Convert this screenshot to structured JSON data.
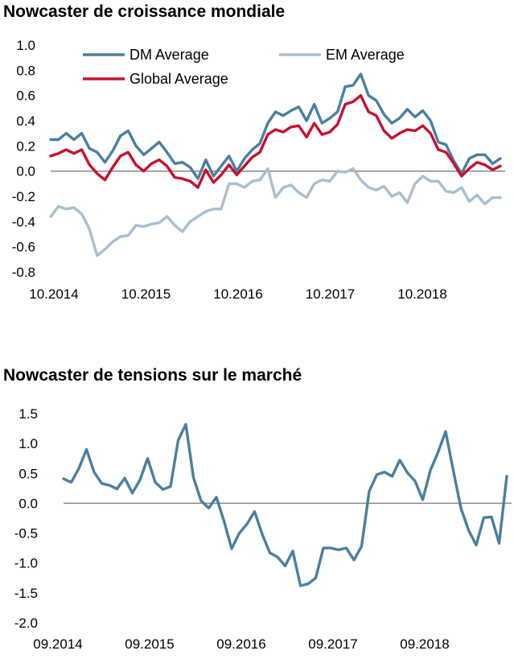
{
  "chart_data": [
    {
      "type": "line",
      "title": "Nowcaster de croissance mondiale",
      "xlabel": "",
      "ylabel": "",
      "x_tick_labels": [
        "10.2014",
        "10.2015",
        "10.2016",
        "10.2017",
        "10.2018"
      ],
      "y_tick_labels": [
        "1.0",
        "0.8",
        "0.6",
        "0.4",
        "0.2",
        "0.0",
        "-0.2",
        "-0.4",
        "-0.6",
        "-0.8"
      ],
      "ylim": [
        -0.8,
        1.0
      ],
      "grid": false,
      "legend_position": "top-left",
      "series": [
        {
          "name": "DM Average",
          "color": "#4a7fa0",
          "values": [
            0.25,
            0.25,
            0.3,
            0.25,
            0.3,
            0.18,
            0.15,
            0.07,
            0.16,
            0.28,
            0.32,
            0.2,
            0.13,
            0.18,
            0.23,
            0.15,
            0.06,
            0.07,
            0.03,
            -0.06,
            0.09,
            -0.04,
            0.04,
            0.12,
            0.0,
            0.1,
            0.17,
            0.22,
            0.38,
            0.47,
            0.44,
            0.48,
            0.51,
            0.4,
            0.53,
            0.38,
            0.42,
            0.47,
            0.67,
            0.68,
            0.77,
            0.6,
            0.56,
            0.45,
            0.38,
            0.42,
            0.49,
            0.43,
            0.48,
            0.4,
            0.23,
            0.21,
            0.08,
            -0.02,
            0.1,
            0.13,
            0.13,
            0.06,
            0.1
          ]
        },
        {
          "name": "EM Average",
          "color": "#a8c0cf",
          "values": [
            -0.36,
            -0.28,
            -0.3,
            -0.29,
            -0.34,
            -0.46,
            -0.67,
            -0.62,
            -0.56,
            -0.52,
            -0.51,
            -0.43,
            -0.44,
            -0.42,
            -0.41,
            -0.36,
            -0.43,
            -0.48,
            -0.4,
            -0.36,
            -0.32,
            -0.3,
            -0.3,
            -0.1,
            -0.1,
            -0.13,
            -0.08,
            -0.07,
            0.02,
            -0.21,
            -0.13,
            -0.11,
            -0.17,
            -0.21,
            -0.1,
            -0.07,
            -0.08,
            0.0,
            -0.01,
            0.02,
            -0.07,
            -0.13,
            -0.15,
            -0.12,
            -0.2,
            -0.17,
            -0.25,
            -0.1,
            -0.04,
            -0.08,
            -0.08,
            -0.16,
            -0.17,
            -0.13,
            -0.24,
            -0.19,
            -0.26,
            -0.21,
            -0.21
          ]
        },
        {
          "name": "Global Average",
          "color": "#c8102e",
          "values": [
            0.12,
            0.14,
            0.17,
            0.14,
            0.17,
            0.05,
            -0.02,
            -0.07,
            0.03,
            0.12,
            0.15,
            0.05,
            0.0,
            0.06,
            0.09,
            0.04,
            -0.05,
            -0.06,
            -0.08,
            -0.13,
            0.01,
            -0.09,
            -0.03,
            0.05,
            -0.03,
            0.04,
            0.11,
            0.15,
            0.29,
            0.33,
            0.31,
            0.35,
            0.36,
            0.27,
            0.38,
            0.29,
            0.31,
            0.37,
            0.53,
            0.55,
            0.6,
            0.47,
            0.44,
            0.32,
            0.26,
            0.3,
            0.33,
            0.32,
            0.36,
            0.3,
            0.17,
            0.15,
            0.06,
            -0.04,
            0.02,
            0.07,
            0.05,
            0.01,
            0.04
          ]
        }
      ]
    },
    {
      "type": "line",
      "title": "Nowcaster de tensions sur le marché",
      "xlabel": "",
      "ylabel": "",
      "x_tick_labels": [
        "09.2014",
        "09.2015",
        "09.2016",
        "09.2017",
        "09.2018"
      ],
      "y_tick_labels": [
        "1.5",
        "1.0",
        "0.5",
        "0.0",
        "-0.5",
        "-1.0",
        "-1.5",
        "-2.0"
      ],
      "ylim": [
        -2.0,
        1.5
      ],
      "grid": false,
      "legend_position": "none",
      "series": [
        {
          "color": "#4a7fa0",
          "values": [
            0.41,
            0.35,
            0.58,
            0.9,
            0.52,
            0.33,
            0.3,
            0.24,
            0.42,
            0.17,
            0.39,
            0.75,
            0.35,
            0.23,
            0.28,
            1.05,
            1.32,
            0.43,
            0.04,
            -0.08,
            0.1,
            -0.3,
            -0.76,
            -0.5,
            -0.35,
            -0.14,
            -0.52,
            -0.83,
            -0.9,
            -1.05,
            -0.8,
            -1.38,
            -1.35,
            -1.25,
            -0.75,
            -0.75,
            -0.78,
            -0.75,
            -0.95,
            -0.72,
            0.2,
            0.48,
            0.52,
            0.45,
            0.72,
            0.51,
            0.37,
            0.06,
            0.55,
            0.85,
            1.2,
            0.55,
            -0.08,
            -0.45,
            -0.7,
            -0.24,
            -0.23,
            -0.67,
            0.45
          ]
        }
      ]
    }
  ]
}
